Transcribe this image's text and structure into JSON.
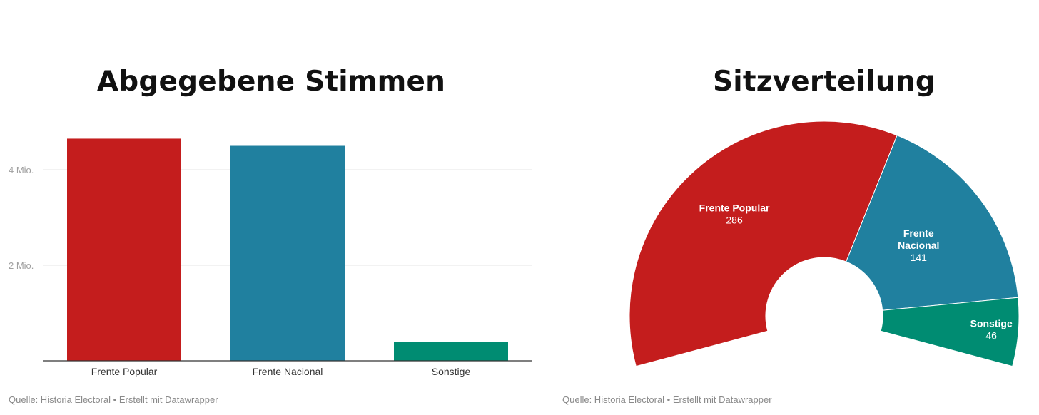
{
  "charts": {
    "votes": {
      "title": "Abgegebene Stimmen",
      "source": "Quelle: Historia Electoral • Erstellt mit Datawrapper"
    },
    "seats": {
      "title": "Sitzverteilung",
      "source": "Quelle: Historia Electoral • Erstellt mit Datawrapper"
    }
  },
  "chart_data": [
    {
      "type": "bar",
      "title": "Abgegebene Stimmen",
      "categories": [
        "Frente Popular",
        "Frente Nacional",
        "Sonstige"
      ],
      "values": [
        4.65,
        4.5,
        0.4
      ],
      "colors": [
        "#c41d1d",
        "#20809f",
        "#008c72"
      ],
      "y_ticks": [
        {
          "value": 2,
          "label": "2 Mio."
        },
        {
          "value": 4,
          "label": "4 Mio."
        }
      ],
      "ylim": [
        0,
        5
      ],
      "grid": true
    },
    {
      "type": "pie",
      "subtype": "parliament-semicircle",
      "title": "Sitzverteilung",
      "labels": [
        "Frente Popular",
        "Frente Nacional",
        "Sonstige"
      ],
      "display_lines": [
        [
          "Frente Popular"
        ],
        [
          "Frente",
          "Nacional"
        ],
        [
          "Sonstige"
        ]
      ],
      "values": [
        286,
        141,
        46
      ],
      "colors": [
        "#c41d1d",
        "#20809f",
        "#008c72"
      ]
    }
  ]
}
